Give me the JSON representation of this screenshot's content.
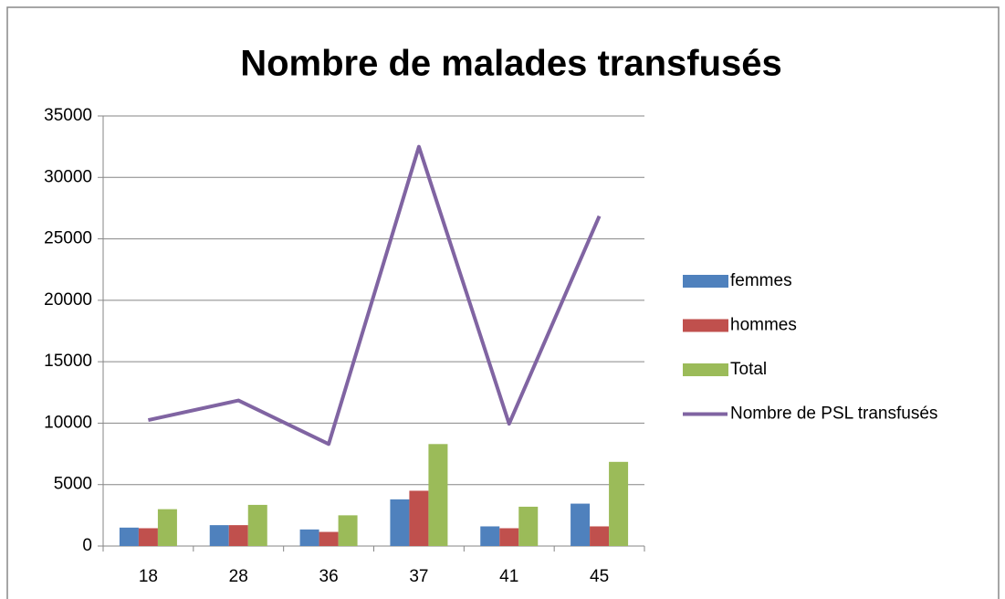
{
  "chart_data": {
    "type": "bar",
    "title": "Nombre de malades transfusés",
    "categories": [
      "18",
      "28",
      "36",
      "37",
      "41",
      "45"
    ],
    "series": [
      {
        "name": "femmes",
        "color": "#4f81bd",
        "values": [
          1500,
          1700,
          1350,
          3800,
          1600,
          3450
        ]
      },
      {
        "name": "hommes",
        "color": "#c0504d",
        "values": [
          1450,
          1700,
          1150,
          4500,
          1450,
          1600
        ]
      },
      {
        "name": "Total",
        "color": "#9bbb59",
        "values": [
          3000,
          3350,
          2500,
          8300,
          3200,
          6850
        ]
      },
      {
        "name": "Nombre de PSL transfusés",
        "color": "#8064a2",
        "type": "line",
        "values": [
          10250,
          11850,
          8300,
          32500,
          9950,
          26850
        ]
      }
    ],
    "ylim": [
      0,
      35000
    ],
    "yticks": [
      0,
      5000,
      10000,
      15000,
      20000,
      25000,
      30000,
      35000
    ],
    "grid": true,
    "legend": "right"
  }
}
